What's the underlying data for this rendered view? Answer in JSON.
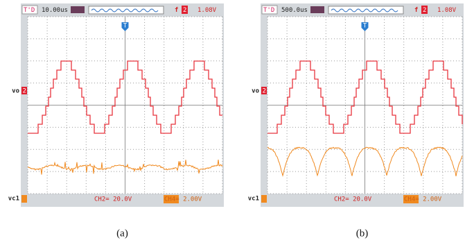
{
  "panels": [
    {
      "header": {
        "trigger": "T'D",
        "timebase": "10.00us",
        "trigger_edge": "f",
        "trigger_channel": "2",
        "trigger_level": "1.08V"
      },
      "trigger_marker": "T",
      "vo_label": "vo",
      "vo_channel": "2",
      "vc1_label": "vc1",
      "footer": {
        "ch2": "CH2= 20.0V",
        "ch4": "CH4= 2.00V"
      },
      "caption": "(a)"
    },
    {
      "header": {
        "trigger": "T'D",
        "timebase": "500.0us",
        "trigger_edge": "f",
        "trigger_channel": "2",
        "trigger_level": "1.08V"
      },
      "trigger_marker": "T",
      "vo_label": "vo",
      "vo_channel": "2",
      "vc1_label": "vc1",
      "footer": {
        "ch2": "CH2= 20.0V",
        "ch4": "CH4= 2.00V"
      },
      "caption": "(b)"
    }
  ]
}
